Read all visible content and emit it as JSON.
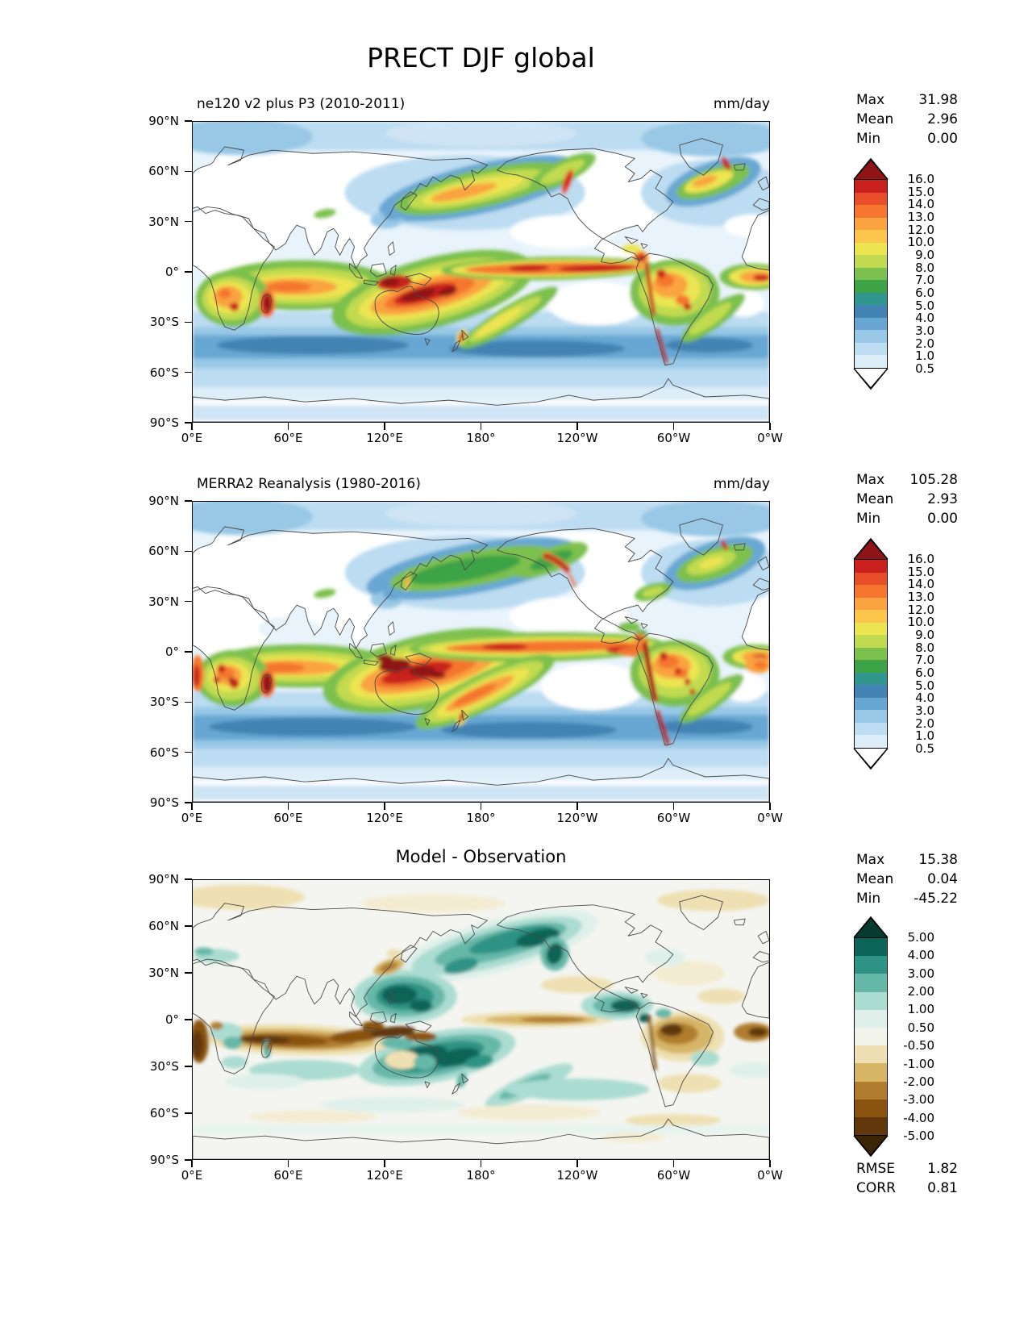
{
  "title": "PRECT DJF global",
  "axes": {
    "x_tick_labels": [
      "0°E",
      "60°E",
      "120°E",
      "180°",
      "120°W",
      "60°W",
      "0°W"
    ],
    "y_tick_labels": [
      "90°N",
      "60°N",
      "30°N",
      "0°",
      "30°S",
      "60°S",
      "90°S"
    ]
  },
  "panels": [
    {
      "subtitle": "ne120 v2 plus P3 (2010-2011)",
      "units": "mm/day",
      "stats": [
        [
          "Max",
          "31.98"
        ],
        [
          "Mean",
          "2.96"
        ],
        [
          "Min",
          "0.00"
        ]
      ],
      "colorbar": "precip"
    },
    {
      "subtitle": "MERRA2 Reanalysis (1980-2016)",
      "units": "mm/day",
      "stats": [
        [
          "Max",
          "105.28"
        ],
        [
          "Mean",
          "2.93"
        ],
        [
          "Min",
          "0.00"
        ]
      ],
      "colorbar": "precip"
    },
    {
      "subtitle": "Model - Observation",
      "units": "",
      "stats": [
        [
          "Max",
          "15.38"
        ],
        [
          "Mean",
          "0.04"
        ],
        [
          "Min",
          "-45.22"
        ]
      ],
      "extra_stats": [
        [
          "RMSE",
          "1.82"
        ],
        [
          "CORR",
          "0.81"
        ]
      ],
      "colorbar": "diff"
    }
  ],
  "colorbars": {
    "precip": {
      "tick_labels_top_to_bottom": [
        "16.0",
        "15.0",
        "14.0",
        "13.0",
        "12.0",
        "10.0",
        "9.0",
        "8.0",
        "7.0",
        "6.0",
        "5.0",
        "4.0",
        "3.0",
        "2.0",
        "1.0",
        "0.5"
      ],
      "band_colors_top_to_bottom": [
        "#c9201d",
        "#e84e29",
        "#f4762f",
        "#faa341",
        "#fbc64b",
        "#ece451",
        "#c1da4f",
        "#7cc04d",
        "#3ea347",
        "#30968e",
        "#4283b3",
        "#68a7d3",
        "#98c8e6",
        "#bfddf2",
        "#ddeef9"
      ],
      "arrow_top_color": "#8e1418",
      "arrow_bottom_color": "#ffffff"
    },
    "diff": {
      "tick_labels_top_to_bottom": [
        "5.00",
        "4.00",
        "3.00",
        "2.00",
        "1.00",
        "0.50",
        "-0.50",
        "-1.00",
        "-2.00",
        "-3.00",
        "-4.00",
        "-5.00"
      ],
      "band_colors_top_to_bottom": [
        "#0b6457",
        "#2e9384",
        "#66b8a9",
        "#abdcd1",
        "#dff0ea",
        "#f2f4ec",
        "#eee0b2",
        "#d7b567",
        "#b07d2e",
        "#8a5310",
        "#60380b"
      ],
      "arrow_top_color": "#073b30",
      "arrow_bottom_color": "#3a2506"
    }
  },
  "chart_data": {
    "type": "heatmap",
    "variable": "PRECT",
    "season": "DJF",
    "region": "global",
    "units": "mm/day",
    "title": "PRECT DJF global",
    "projection": "lat-lon, longitude 0E to 0W (centered on 180)",
    "panels": [
      {
        "name": "ne120 v2 plus P3 (2010-2011)",
        "role": "model",
        "max": 31.98,
        "mean": 2.96,
        "min": 0.0,
        "contour_levels": [
          0.5,
          1,
          2,
          3,
          4,
          5,
          6,
          7,
          8,
          9,
          10,
          12,
          13,
          14,
          15,
          16
        ],
        "colormap": "white-blue-green-yellow-red"
      },
      {
        "name": "MERRA2 Reanalysis (1980-2016)",
        "role": "reference",
        "max": 105.28,
        "mean": 2.93,
        "min": 0.0,
        "contour_levels": [
          0.5,
          1,
          2,
          3,
          4,
          5,
          6,
          7,
          8,
          9,
          10,
          12,
          13,
          14,
          15,
          16
        ],
        "colormap": "white-blue-green-yellow-red"
      },
      {
        "name": "Model - Observation",
        "role": "difference",
        "max": 15.38,
        "mean": 0.04,
        "min": -45.22,
        "rmse": 1.82,
        "corr": 0.81,
        "contour_levels": [
          -5,
          -4,
          -3,
          -2,
          -1,
          -0.5,
          0.5,
          1,
          2,
          3,
          4,
          5
        ],
        "colormap": "brown-white-teal (BrBG-like)"
      }
    ],
    "x_axis": {
      "tick_labels": [
        "0°E",
        "60°E",
        "120°E",
        "180°",
        "120°W",
        "60°W",
        "0°W"
      ],
      "range_deg_east": [
        0,
        360
      ],
      "grid": false
    },
    "y_axis": {
      "tick_labels": [
        "90°N",
        "60°N",
        "30°N",
        "0°",
        "30°S",
        "60°S",
        "90°S"
      ],
      "range_deg_north": [
        -90,
        90
      ],
      "grid": false
    }
  }
}
